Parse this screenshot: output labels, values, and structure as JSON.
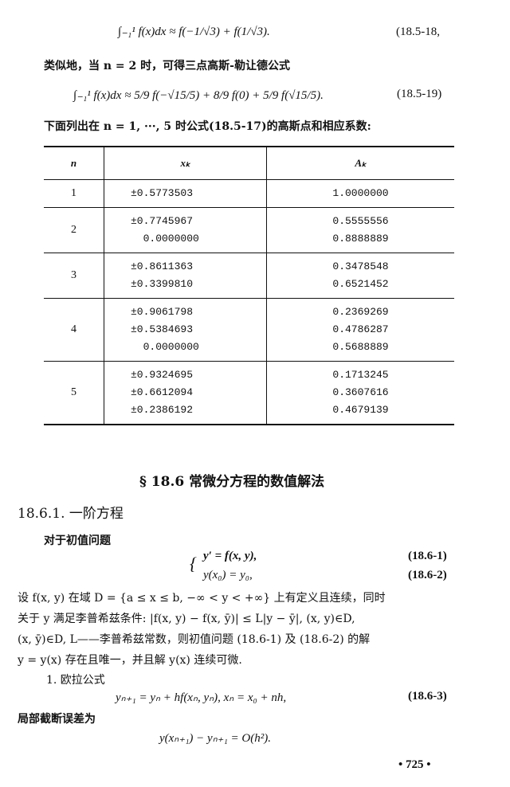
{
  "eq_18_5_18": {
    "formula": "∫₋₁¹ f(x)dx ≈ f(−1/√3) + f(1/√3).",
    "label": "(18.5-18,"
  },
  "para1": "类似地，当 n = 2 时，可得三点高斯-勒让德公式",
  "eq_18_5_19": {
    "formula": "∫₋₁¹ f(x)dx ≈ 5/9 f(−√15/5) + 8/9 f(0) + 5/9 f(√15/5).",
    "label": "(18.5-19)"
  },
  "para2": "下面列出在 n = 1, ···, 5 时公式(18.5-17)的高斯点和相应系数:",
  "table": {
    "headers": [
      "n",
      "xₖ",
      "Aₖ"
    ],
    "rows": [
      {
        "n": "1",
        "x": [
          "±0.5773503"
        ],
        "a": [
          "1.0000000"
        ]
      },
      {
        "n": "2",
        "x": [
          "±0.7745967",
          "  0.0000000"
        ],
        "a": [
          "0.5555556",
          "0.8888889"
        ]
      },
      {
        "n": "3",
        "x": [
          "±0.8611363",
          "±0.3399810"
        ],
        "a": [
          "0.3478548",
          "0.6521452"
        ]
      },
      {
        "n": "4",
        "x": [
          "±0.9061798",
          "±0.5384693",
          "  0.0000000"
        ],
        "a": [
          "0.2369269",
          "0.4786287",
          "0.5688889"
        ]
      },
      {
        "n": "5",
        "x": [
          "±0.9324695",
          "±0.6612094",
          "±0.2386192"
        ],
        "a": [
          "0.1713245",
          "0.3607616",
          "0.4679139"
        ]
      }
    ]
  },
  "section_title": "§ 18.6   常微分方程的数值解法",
  "subsection_title": "18.6.1. 一阶方程",
  "para3": "对于初值问题",
  "eq_18_6_1": {
    "formula": "y′ = f(x, y),",
    "label": "(18.6-1)"
  },
  "eq_18_6_2": {
    "formula": "y(x₀) = y₀,",
    "label": "(18.6-2)"
  },
  "para4_l1": "设 f(x, y) 在域 D = {a ≤ x ≤ b,  −∞ < y < +∞} 上有定义且连续，同时",
  "para4_l2": "关于 y 满足李普希兹条件:  |f(x, y) − f(x, ȳ)| ≤ L|y − ȳ|, (x, y)∈D,",
  "para4_l3": "(x, ȳ)∈D, L——李普希兹常数，则初值问题 (18.6-1) 及 (18.6-2) 的解",
  "para4_l4": "y = y(x) 存在且唯一，并且解 y(x) 连续可微.",
  "item1": "1. 欧拉公式",
  "eq_18_6_3": {
    "formula": "yₙ₊₁ = yₙ + hf(xₙ, yₙ),  xₙ = x₀ + nh,",
    "label": "(18.6-3)"
  },
  "para5": "局部截断误差为",
  "eq_error": "y(xₙ₊₁) − yₙ₊₁ = O(h²).",
  "page_number": "• 725 •"
}
